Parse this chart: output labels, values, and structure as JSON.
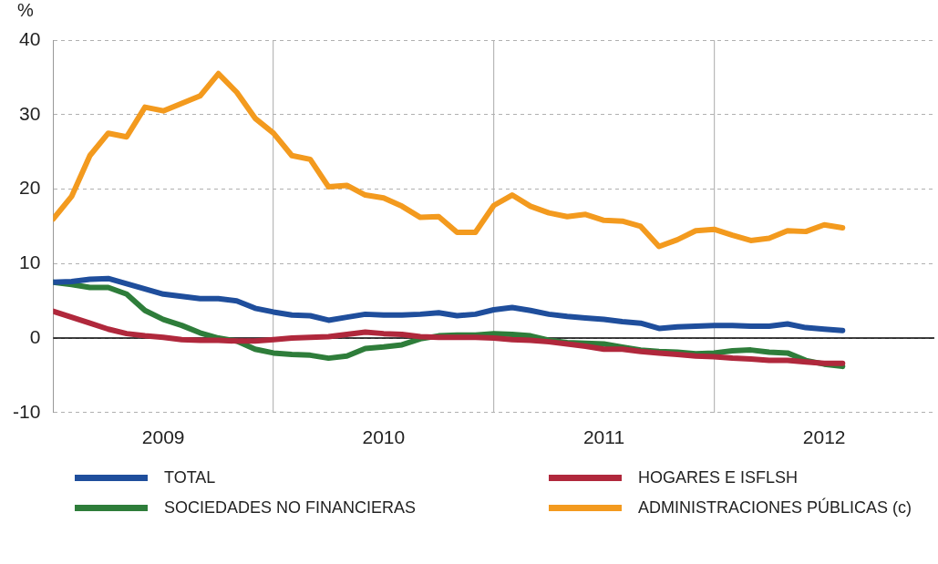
{
  "chart_data": {
    "type": "line",
    "ylabel": "%",
    "x": [
      "2009-01",
      "2009-02",
      "2009-03",
      "2009-04",
      "2009-05",
      "2009-06",
      "2009-07",
      "2009-08",
      "2009-09",
      "2009-10",
      "2009-11",
      "2009-12",
      "2010-01",
      "2010-02",
      "2010-03",
      "2010-04",
      "2010-05",
      "2010-06",
      "2010-07",
      "2010-08",
      "2010-09",
      "2010-10",
      "2010-11",
      "2010-12",
      "2011-01",
      "2011-02",
      "2011-03",
      "2011-04",
      "2011-05",
      "2011-06",
      "2011-07",
      "2011-08",
      "2011-09",
      "2011-10",
      "2011-11",
      "2011-12",
      "2012-01",
      "2012-02",
      "2012-03",
      "2012-04",
      "2012-05",
      "2012-06",
      "2012-07",
      "2012-08"
    ],
    "series": [
      {
        "name": "TOTAL",
        "color": "#1f4e9c",
        "values": [
          7.5,
          7.6,
          7.9,
          8.0,
          7.3,
          6.6,
          5.9,
          5.6,
          5.3,
          5.3,
          5.0,
          4.0,
          3.5,
          3.1,
          3.0,
          2.4,
          2.8,
          3.2,
          3.1,
          3.1,
          3.2,
          3.4,
          3.0,
          3.2,
          3.8,
          4.1,
          3.7,
          3.2,
          2.9,
          2.7,
          2.5,
          2.2,
          2.0,
          1.3,
          1.5,
          1.6,
          1.7,
          1.7,
          1.6,
          1.6,
          1.9,
          1.4,
          1.2,
          1.0
        ]
      },
      {
        "name": "HOGARES E ISFLSH",
        "color": "#b0283c",
        "values": [
          3.6,
          2.8,
          2.0,
          1.2,
          0.6,
          0.3,
          0.1,
          -0.2,
          -0.3,
          -0.3,
          -0.4,
          -0.4,
          -0.2,
          0.0,
          0.1,
          0.2,
          0.5,
          0.8,
          0.6,
          0.5,
          0.2,
          0.1,
          0.1,
          0.1,
          0.0,
          -0.2,
          -0.3,
          -0.5,
          -0.8,
          -1.1,
          -1.5,
          -1.5,
          -1.8,
          -2.0,
          -2.2,
          -2.4,
          -2.5,
          -2.7,
          -2.8,
          -3.0,
          -3.0,
          -3.2,
          -3.4,
          -3.4
        ]
      },
      {
        "name": "SOCIEDADES NO FINANCIERAS",
        "color": "#2e7d3a",
        "values": [
          7.5,
          7.2,
          6.8,
          6.8,
          5.9,
          3.7,
          2.5,
          1.7,
          0.7,
          0.0,
          -0.4,
          -1.5,
          -2.0,
          -2.2,
          -2.3,
          -2.7,
          -2.4,
          -1.4,
          -1.2,
          -0.9,
          -0.1,
          0.3,
          0.4,
          0.4,
          0.6,
          0.5,
          0.3,
          -0.3,
          -0.6,
          -0.7,
          -0.8,
          -1.2,
          -1.6,
          -1.8,
          -1.9,
          -2.1,
          -2.0,
          -1.7,
          -1.6,
          -1.9,
          -2.0,
          -3.0,
          -3.5,
          -3.8
        ]
      },
      {
        "name": "ADMINISTRACIONES PÚBLICAS (c)",
        "color": "#f39a1e",
        "values": [
          16,
          19,
          24.5,
          27.5,
          27,
          31,
          30.5,
          31.5,
          32.5,
          35.5,
          33,
          29.5,
          27.5,
          24.5,
          24,
          20.3,
          20.5,
          19.2,
          18.8,
          17.7,
          16.2,
          16.3,
          14.2,
          14.2,
          17.8,
          19.2,
          17.7,
          16.8,
          16.3,
          16.6,
          15.8,
          15.7,
          15,
          12.3,
          13.2,
          14.4,
          14.6,
          13.8,
          13.1,
          13.4,
          14.4,
          14.3,
          15.2,
          14.8
        ]
      }
    ],
    "xlim": [
      "2009-01",
      "2013-01"
    ],
    "xticks": [
      {
        "value": "2009-07",
        "label": "2009"
      },
      {
        "value": "2010-01",
        "label": null
      },
      {
        "value": "2010-07",
        "label": "2010"
      },
      {
        "value": "2011-01",
        "label": null
      },
      {
        "value": "2011-07",
        "label": "2011"
      },
      {
        "value": "2012-01",
        "label": null
      },
      {
        "value": "2012-07",
        "label": "2012"
      }
    ],
    "ylim": [
      -10,
      40
    ],
    "yticks": [
      -10,
      0,
      10,
      20,
      30,
      40
    ],
    "ref_lines": [
      {
        "axis": "y",
        "value": 0,
        "color": "#000000"
      }
    ],
    "grid": true,
    "legend": "bottom",
    "marker": "none",
    "line_style": "solid"
  }
}
